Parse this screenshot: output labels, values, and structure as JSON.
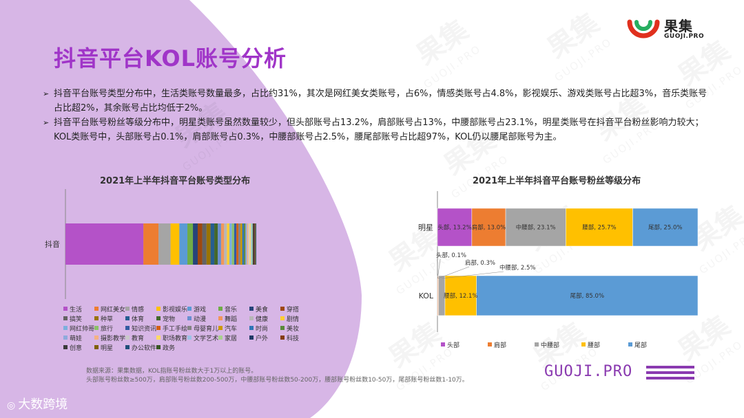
{
  "title": "抖音平台KOL账号分析",
  "logo": {
    "name": "果集",
    "url": "GUOJI.PRO"
  },
  "bullets": [
    "抖音平台账号类型分布中，生活类账号数量最多，占比约31%，其次是网红美女类账号，占6%，情感类账号占4.8%，影视娱乐、游戏类账号占比超3%，音乐类账号占比超2%，其余账号占比均低于2%。",
    "抖音平台账号粉丝等级分布中，明星类账号虽然数量较少，但头部账号占13.2%，肩部账号占13%，中腰部账号占23.1%，明星类账号在抖音平台粉丝影响力较大；KOL类账号中，头部账号占0.1%，肩部账号占0.3%，中腰部账号占2.5%，腰尾部账号占比超97%，KOL仍以腰尾部账号为主。"
  ],
  "source_note": [
    "数据来源：果集数据，KOL指账号粉丝数大于1万以上的账号。",
    "头部账号粉丝数≥500万，肩部账号粉丝数200-500万，中腰部账号粉丝数50-200万，腰部账号粉丝数10-50万，尾部账号粉丝数1-10万。"
  ],
  "brand_text": "GUOJI.PRO",
  "bottom_logo": "大数跨境",
  "watermark": {
    "char": "果集",
    "sub": "GUOJI.PRO"
  },
  "colors": {
    "purple": "#a035c8",
    "purple_bg": "#d7b6e6"
  },
  "chart_data": [
    {
      "type": "bar",
      "orientation": "horizontal-stacked",
      "title": "2021年上半年抖音平台账号类型分布",
      "categories": [
        "抖音"
      ],
      "xlim": [
        0,
        100
      ],
      "series": [
        {
          "name": "生活",
          "values": [
            31.0
          ],
          "color": "#b452c8"
        },
        {
          "name": "网红美女",
          "values": [
            6.0
          ],
          "color": "#ed7d31"
        },
        {
          "name": "情感",
          "values": [
            4.8
          ],
          "color": "#a5a5a5"
        },
        {
          "name": "影视娱乐",
          "values": [
            3.5
          ],
          "color": "#ffc000"
        },
        {
          "name": "游戏",
          "values": [
            3.2
          ],
          "color": "#5b9bd5"
        },
        {
          "name": "音乐",
          "values": [
            2.2
          ],
          "color": "#70ad47"
        },
        {
          "name": "美食",
          "values": [
            1.9
          ],
          "color": "#264478"
        },
        {
          "name": "穿搭",
          "values": [
            1.8
          ],
          "color": "#9e480e"
        },
        {
          "name": "搞笑",
          "values": [
            1.7
          ],
          "color": "#636363"
        },
        {
          "name": "种草",
          "values": [
            1.6
          ],
          "color": "#997300"
        },
        {
          "name": "体育",
          "values": [
            1.5
          ],
          "color": "#255e91"
        },
        {
          "name": "宠物",
          "values": [
            1.4
          ],
          "color": "#43682b"
        },
        {
          "name": "动漫",
          "values": [
            1.3
          ],
          "color": "#698ed0"
        },
        {
          "name": "舞蹈",
          "values": [
            1.2
          ],
          "color": "#f1975a"
        },
        {
          "name": "健康",
          "values": [
            1.1
          ],
          "color": "#b7b7b7"
        },
        {
          "name": "剧情",
          "values": [
            1.0
          ],
          "color": "#ffcd33"
        },
        {
          "name": "网红帅哥",
          "values": [
            1.0
          ],
          "color": "#7cafdd"
        },
        {
          "name": "旅行",
          "values": [
            0.9
          ],
          "color": "#8cc168"
        },
        {
          "name": "知识资讯",
          "values": [
            0.9
          ],
          "color": "#335aa1"
        },
        {
          "name": "手工手绘",
          "values": [
            0.8
          ],
          "color": "#d26012"
        },
        {
          "name": "母婴育儿",
          "values": [
            0.8
          ],
          "color": "#848484"
        },
        {
          "name": "汽车",
          "values": [
            0.7
          ],
          "color": "#cc9a00"
        },
        {
          "name": "时尚",
          "values": [
            0.7
          ],
          "color": "#2e75b6"
        },
        {
          "name": "美妆",
          "values": [
            0.6
          ],
          "color": "#5a8a39"
        },
        {
          "name": "萌娃",
          "values": [
            0.6
          ],
          "color": "#8faadc"
        },
        {
          "name": "摄影教学",
          "values": [
            0.5
          ],
          "color": "#f4b183"
        },
        {
          "name": "教育",
          "values": [
            0.5
          ],
          "color": "#c9c9c9"
        },
        {
          "name": "职场教育",
          "values": [
            0.5
          ],
          "color": "#ffd966"
        },
        {
          "name": "文学艺术",
          "values": [
            0.4
          ],
          "color": "#9dc3e6"
        },
        {
          "name": "家居",
          "values": [
            0.4
          ],
          "color": "#a9d18e"
        },
        {
          "name": "户外",
          "values": [
            0.3
          ],
          "color": "#1f3864"
        },
        {
          "name": "科技",
          "values": [
            0.3
          ],
          "color": "#843c0c"
        },
        {
          "name": "创意",
          "values": [
            0.3
          ],
          "color": "#3a3a3a"
        },
        {
          "name": "明星",
          "values": [
            0.2
          ],
          "color": "#7f6000"
        },
        {
          "name": "办公软件",
          "values": [
            0.2
          ],
          "color": "#1f4e79"
        },
        {
          "name": "政务",
          "values": [
            0.1
          ],
          "color": "#385723"
        }
      ]
    },
    {
      "type": "bar",
      "orientation": "horizontal-stacked",
      "title": "2021年上半年抖音平台账号粉丝等级分布",
      "categories": [
        "明星",
        "KOL"
      ],
      "xlim": [
        0,
        100
      ],
      "legend_position": "bottom",
      "series": [
        {
          "name": "头部",
          "values": [
            13.2,
            0.1
          ],
          "color": "#b452c8",
          "labels": [
            "头部, 13.2%",
            "头部, 0.1%"
          ]
        },
        {
          "name": "肩部",
          "values": [
            13.0,
            0.3
          ],
          "color": "#ed7d31",
          "labels": [
            "肩部, 13.0%",
            "肩部, 0.3%"
          ]
        },
        {
          "name": "中腰部",
          "values": [
            23.1,
            2.5
          ],
          "color": "#a5a5a5",
          "labels": [
            "中腰部, 23.1%",
            "中腰部, 2.5%"
          ]
        },
        {
          "name": "腰部",
          "values": [
            25.7,
            12.1
          ],
          "color": "#ffc000",
          "labels": [
            "腰部, 25.7%",
            "腰部, 12.1%"
          ]
        },
        {
          "name": "尾部",
          "values": [
            25.0,
            85.0
          ],
          "color": "#5b9bd5",
          "labels": [
            "尾部, 25.0%",
            "尾部, 85.0%"
          ]
        }
      ]
    }
  ]
}
